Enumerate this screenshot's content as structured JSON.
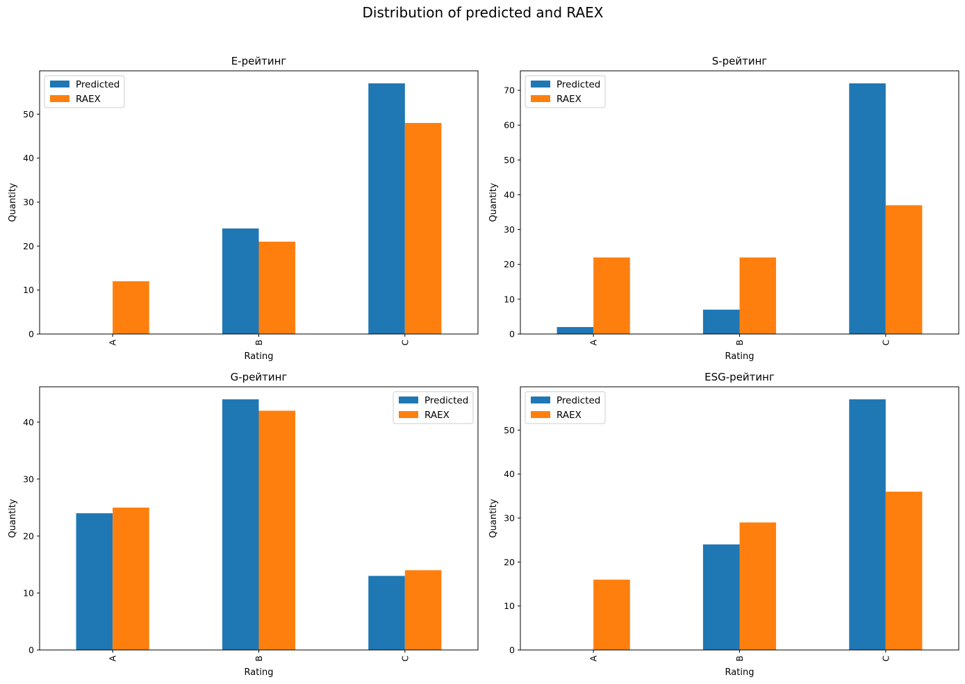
{
  "figure": {
    "suptitle": "Distribution of predicted and RAEX"
  },
  "colors": {
    "predicted": "#1f77b4",
    "raex": "#ff7f0e"
  },
  "chart_data": [
    {
      "type": "bar",
      "title": "E-рейтинг",
      "xlabel": "Rating",
      "ylabel": "Quantity",
      "categories": [
        "A",
        "B",
        "C"
      ],
      "series": [
        {
          "name": "Predicted",
          "values": [
            0,
            24,
            57
          ]
        },
        {
          "name": "RAEX",
          "values": [
            12,
            21,
            48
          ]
        }
      ],
      "ylim": [
        0,
        59.85
      ],
      "yticks": [
        0,
        10,
        20,
        30,
        40,
        50
      ],
      "legend": "upper-left"
    },
    {
      "type": "bar",
      "title": "S-рейтинг",
      "xlabel": "Rating",
      "ylabel": "Quantity",
      "categories": [
        "A",
        "B",
        "C"
      ],
      "series": [
        {
          "name": "Predicted",
          "values": [
            2,
            7,
            72
          ]
        },
        {
          "name": "RAEX",
          "values": [
            22,
            22,
            37
          ]
        }
      ],
      "ylim": [
        0,
        75.6
      ],
      "yticks": [
        0,
        10,
        20,
        30,
        40,
        50,
        60,
        70
      ],
      "legend": "upper-left"
    },
    {
      "type": "bar",
      "title": "G-рейтинг",
      "xlabel": "Rating",
      "ylabel": "Quantity",
      "categories": [
        "A",
        "B",
        "C"
      ],
      "series": [
        {
          "name": "Predicted",
          "values": [
            24,
            44,
            13
          ]
        },
        {
          "name": "RAEX",
          "values": [
            25,
            42,
            14
          ]
        }
      ],
      "ylim": [
        0,
        46.2
      ],
      "yticks": [
        0,
        10,
        20,
        30,
        40
      ],
      "legend": "upper-right"
    },
    {
      "type": "bar",
      "title": "ESG-рейтинг",
      "xlabel": "Rating",
      "ylabel": "Quantity",
      "categories": [
        "A",
        "B",
        "C"
      ],
      "series": [
        {
          "name": "Predicted",
          "values": [
            0,
            24,
            57
          ]
        },
        {
          "name": "RAEX",
          "values": [
            16,
            29,
            36
          ]
        }
      ],
      "ylim": [
        0,
        59.85
      ],
      "yticks": [
        0,
        10,
        20,
        30,
        40,
        50
      ],
      "legend": "upper-left"
    }
  ]
}
